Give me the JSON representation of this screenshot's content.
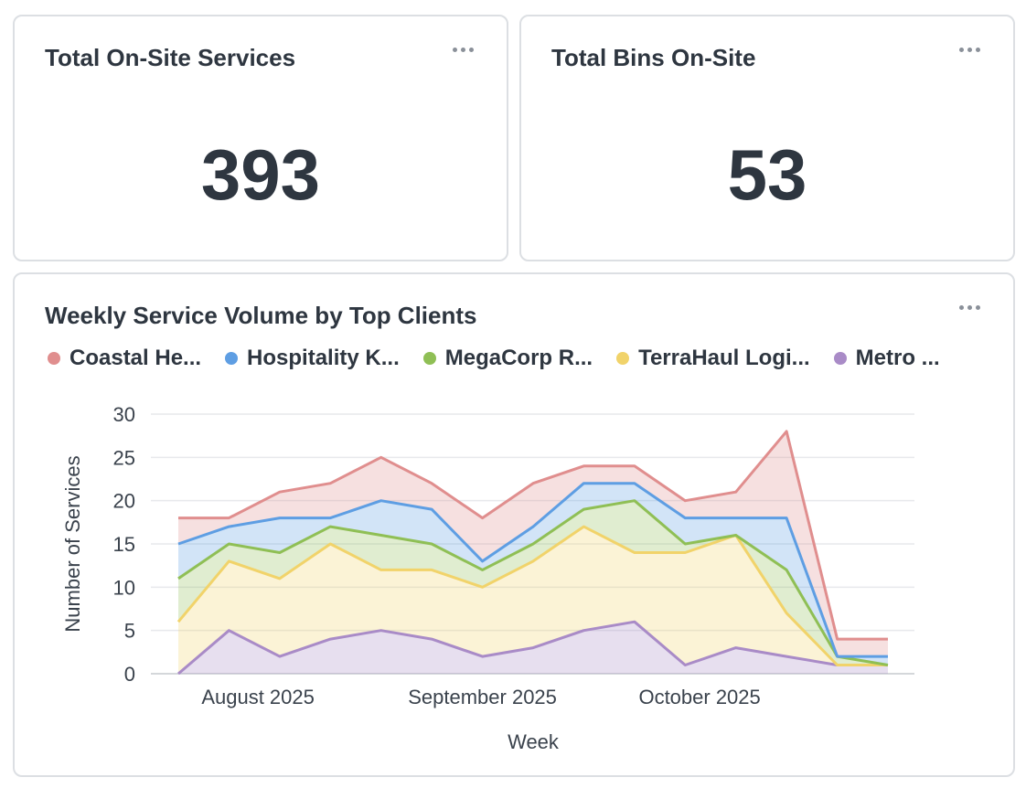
{
  "cards": {
    "services": {
      "title": "Total On-Site Services",
      "value": "393"
    },
    "bins": {
      "title": "Total Bins On-Site",
      "value": "53"
    }
  },
  "chart_card": {
    "title": "Weekly Service Volume by Top Clients",
    "legend": [
      {
        "label": "Coastal He...",
        "color": "#e08e8e"
      },
      {
        "label": "Hospitality K...",
        "color": "#5e9ee3"
      },
      {
        "label": "MegaCorp R...",
        "color": "#8fbf55"
      },
      {
        "label": "TerraHaul Logi...",
        "color": "#f1d36a"
      },
      {
        "label": "Metro ...",
        "color": "#a98bc7"
      }
    ]
  },
  "chart_data": {
    "type": "area",
    "stacked": true,
    "xlabel": "Week",
    "ylabel": "Number of Services",
    "ylim": [
      0,
      30
    ],
    "yticks": [
      0,
      5,
      10,
      15,
      20,
      25,
      30
    ],
    "x": [
      "2025-07-21",
      "2025-07-28",
      "2025-08-04",
      "2025-08-11",
      "2025-08-18",
      "2025-08-25",
      "2025-09-01",
      "2025-09-08",
      "2025-09-15",
      "2025-09-22",
      "2025-09-29",
      "2025-10-06",
      "2025-10-13",
      "2025-10-20",
      "2025-10-27"
    ],
    "xticks": [
      {
        "label": "August 2025",
        "date": "2025-08-01"
      },
      {
        "label": "September 2025",
        "date": "2025-09-01"
      },
      {
        "label": "October 2025",
        "date": "2025-10-01"
      }
    ],
    "grid": true,
    "legend_position": "top",
    "series": [
      {
        "name": "Metro ...",
        "color": "#a98bc7",
        "values": [
          0,
          5,
          2,
          4,
          5,
          4,
          2,
          3,
          5,
          6,
          1,
          3,
          2,
          1,
          1
        ]
      },
      {
        "name": "TerraHaul Logi...",
        "color": "#f1d36a",
        "values": [
          6,
          8,
          9,
          11,
          7,
          8,
          8,
          10,
          12,
          8,
          13,
          13,
          5,
          0,
          0
        ]
      },
      {
        "name": "MegaCorp R...",
        "color": "#8fbf55",
        "values": [
          5,
          2,
          3,
          2,
          4,
          3,
          2,
          2,
          2,
          6,
          1,
          0,
          5,
          1,
          0
        ]
      },
      {
        "name": "Hospitality K...",
        "color": "#5e9ee3",
        "values": [
          4,
          2,
          4,
          1,
          4,
          4,
          1,
          2,
          3,
          2,
          3,
          2,
          6,
          0,
          1
        ]
      },
      {
        "name": "Coastal He...",
        "color": "#e08e8e",
        "values": [
          3,
          1,
          3,
          4,
          5,
          3,
          5,
          5,
          2,
          2,
          2,
          3,
          10,
          2,
          2
        ]
      }
    ]
  }
}
